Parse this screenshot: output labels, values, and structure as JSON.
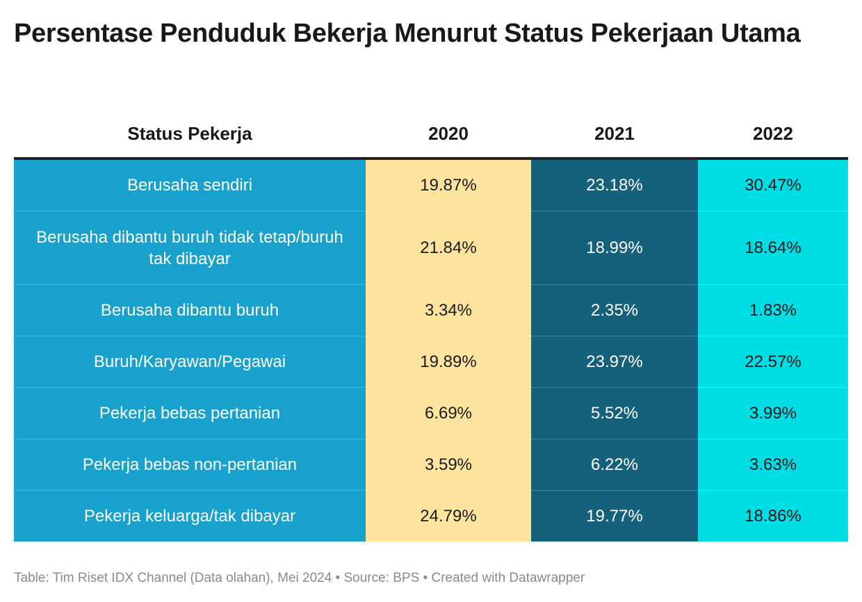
{
  "title": "Persentase Penduduk Bekerja Menurut Status Pekerjaan Utama",
  "table": {
    "headers": [
      "Status Pekerja",
      "2020",
      "2021",
      "2022"
    ],
    "rows": [
      {
        "status": "Berusaha sendiri",
        "y2020": "19.87%",
        "y2021": "23.18%",
        "y2022": "30.47%"
      },
      {
        "status": "Berusaha dibantu buruh tidak tetap/buruh tak dibayar",
        "y2020": "21.84%",
        "y2021": "18.99%",
        "y2022": "18.64%"
      },
      {
        "status": "Berusaha dibantu buruh",
        "y2020": "3.34%",
        "y2021": "2.35%",
        "y2022": "1.83%"
      },
      {
        "status": "Buruh/Karyawan/Pegawai",
        "y2020": "19.89%",
        "y2021": "23.97%",
        "y2022": "22.57%"
      },
      {
        "status": "Pekerja bebas pertanian",
        "y2020": "6.69%",
        "y2021": "5.52%",
        "y2022": "3.99%"
      },
      {
        "status": "Pekerja bebas non-pertanian",
        "y2020": "3.59%",
        "y2021": "6.22%",
        "y2022": "3.63%"
      },
      {
        "status": "Pekerja keluarga/tak dibayar",
        "y2020": "24.79%",
        "y2021": "19.77%",
        "y2022": "18.86%"
      }
    ]
  },
  "footer": "Table: Tim Riset IDX Channel (Data olahan), Mei 2024 • Source: BPS • Created with Datawrapper",
  "colors": {
    "status_column": "#18a1cd",
    "y2020_column": "#fce39e",
    "y2021_column": "#15607a",
    "y2022_column": "#00dee5"
  },
  "chart_data": {
    "type": "table",
    "title": "Persentase Penduduk Bekerja Menurut Status Pekerjaan Utama",
    "columns": [
      "Status Pekerja",
      "2020",
      "2021",
      "2022"
    ],
    "categories": [
      "Berusaha sendiri",
      "Berusaha dibantu buruh tidak tetap/buruh tak dibayar",
      "Berusaha dibantu buruh",
      "Buruh/Karyawan/Pegawai",
      "Pekerja bebas pertanian",
      "Pekerja bebas non-pertanian",
      "Pekerja keluarga/tak dibayar"
    ],
    "series": [
      {
        "name": "2020",
        "values": [
          19.87,
          21.84,
          3.34,
          19.89,
          6.69,
          3.59,
          24.79
        ]
      },
      {
        "name": "2021",
        "values": [
          23.18,
          18.99,
          2.35,
          23.97,
          5.52,
          6.22,
          19.77
        ]
      },
      {
        "name": "2022",
        "values": [
          30.47,
          18.64,
          1.83,
          22.57,
          3.99,
          3.63,
          18.86
        ]
      }
    ],
    "unit": "%"
  }
}
